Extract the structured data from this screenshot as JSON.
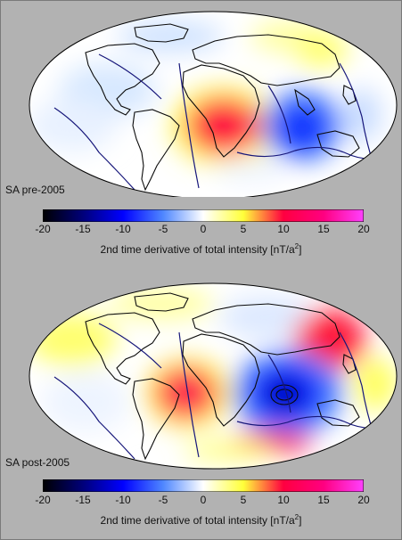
{
  "panels": [
    {
      "label": "SA pre-2005"
    },
    {
      "label": "SA post-2005"
    }
  ],
  "colorbar": {
    "ticks": [
      "-20",
      "-15",
      "-10",
      "-5",
      "0",
      "5",
      "10",
      "15",
      "20"
    ],
    "caption_main": "2nd time derivative of total intensity [nT/a",
    "caption_sup": "2",
    "caption_tail": "]",
    "colors": [
      "#000000",
      "#00007a",
      "#0000ff",
      "#4f87ff",
      "#ffffff",
      "#ffff3a",
      "#ff0040",
      "#ff0080",
      "#ff40ff"
    ]
  }
}
